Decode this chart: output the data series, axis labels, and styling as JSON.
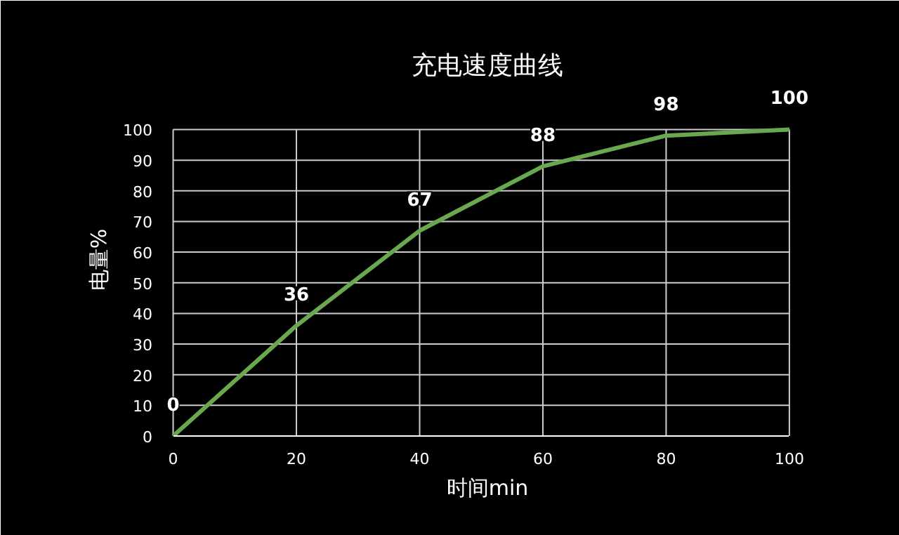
{
  "chart_data": {
    "type": "line",
    "title": "充电速度曲线",
    "xlabel": "时间min",
    "ylabel": "电量%",
    "x": [
      0,
      20,
      40,
      60,
      80,
      100
    ],
    "series": [
      {
        "color": "#6aa84f",
        "values": [
          0,
          36,
          67,
          88,
          98,
          100
        ]
      }
    ],
    "xlim": [
      0,
      100
    ],
    "xticks": [
      0,
      20,
      40,
      60,
      80,
      100
    ],
    "ylim": [
      0,
      100
    ],
    "yticks": [
      0,
      10,
      20,
      30,
      40,
      50,
      60,
      70,
      80,
      90,
      100
    ],
    "grid": true,
    "data_labels": true,
    "marker": "none",
    "line_style": "solid"
  }
}
